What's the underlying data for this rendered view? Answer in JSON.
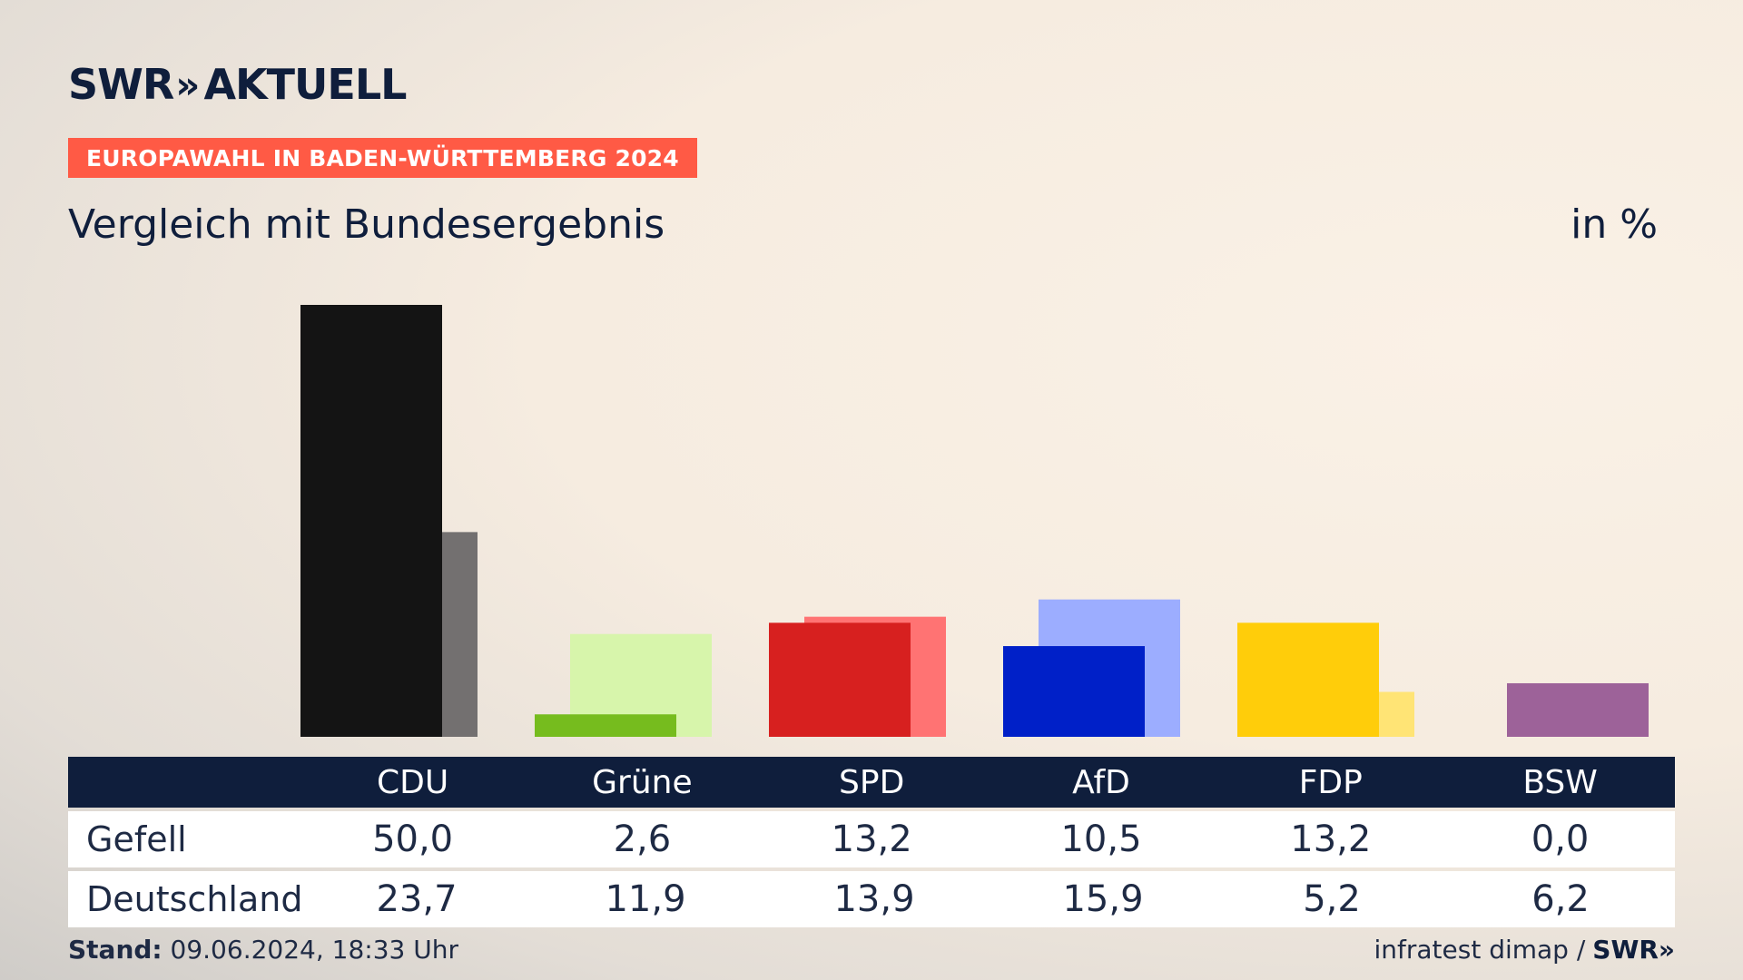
{
  "header": {
    "logo_text": "SWR",
    "logo_chevrons": "»",
    "logo_suffix": "AKTUELL",
    "badge": "EUROPAWAHL IN BADEN-WÜRTTEMBERG 2024",
    "subtitle": "Vergleich mit Bundesergebnis",
    "unit": "in %"
  },
  "table": {
    "row_labels": [
      "Gefell",
      "Deutschland"
    ]
  },
  "footer": {
    "stand_label": "Stand:",
    "stand_value": "09.06.2024, 18:33 Uhr",
    "source": "infratest dimap /",
    "source_logo": "SWR»"
  },
  "chart_data": {
    "type": "bar",
    "categories": [
      "CDU",
      "Grüne",
      "SPD",
      "AfD",
      "FDP",
      "BSW"
    ],
    "series": [
      {
        "name": "Gefell",
        "values": [
          50.0,
          2.6,
          13.2,
          10.5,
          13.2,
          0.0
        ],
        "labels": [
          "50,0",
          "2,6",
          "13,2",
          "10,5",
          "13,2",
          "0,0"
        ]
      },
      {
        "name": "Deutschland",
        "values": [
          23.7,
          11.9,
          13.9,
          15.9,
          5.2,
          6.2
        ],
        "labels": [
          "23,7",
          "11,9",
          "13,9",
          "15,9",
          "5,2",
          "6,2"
        ]
      }
    ],
    "colors": {
      "primary": [
        "#141414",
        "#76bc1e",
        "#d7201f",
        "#0020c8",
        "#ffcd0a",
        "#9d6299"
      ],
      "secondary": [
        "#737070",
        "#d7f5ab",
        "#ff7373",
        "#9cadff",
        "#ffe475",
        "#9d6299"
      ]
    },
    "ylim": [
      0,
      50
    ]
  }
}
